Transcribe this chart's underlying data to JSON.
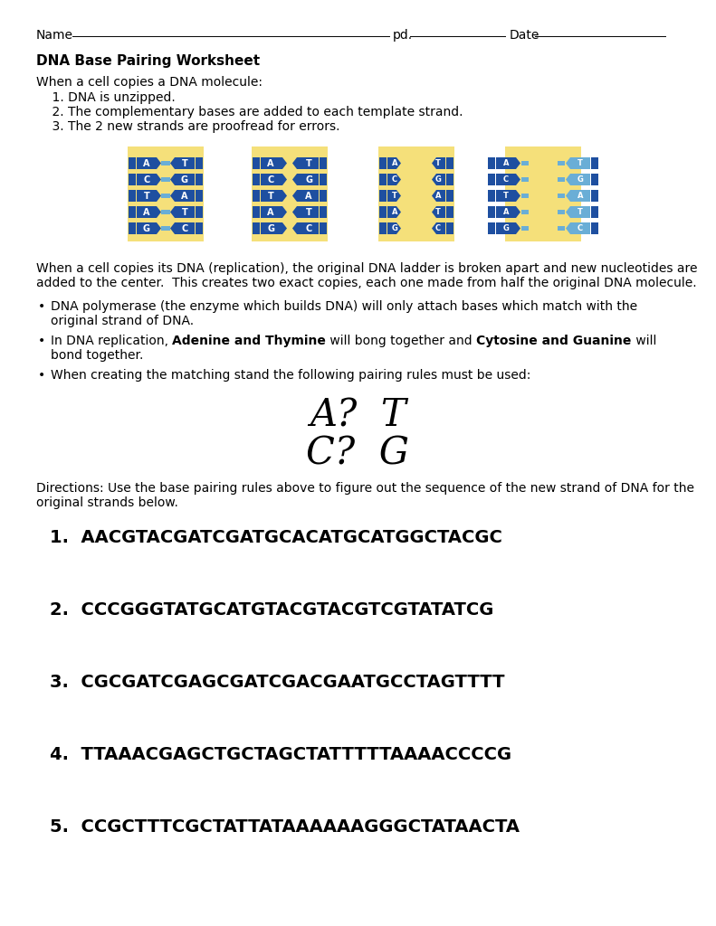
{
  "title": "DNA Base Pairing Worksheet",
  "bg_color": "#ffffff",
  "text_color": "#1a1a1a",
  "dna_bg_color": "#f5e07a",
  "dna_dark_blue": "#1e4fa0",
  "dna_light_blue": "#6aaed6",
  "dna_bases_l": [
    "A",
    "C",
    "T",
    "A",
    "G"
  ],
  "dna_bases_r": [
    "T",
    "G",
    "A",
    "T",
    "C"
  ],
  "pairing1": "A?  T",
  "pairing2": "C?  G",
  "sequences": [
    "1.  AACGTACGATCGATGCACATGCATGGCTACGC",
    "2.  CCCGGGTATGCATGTACGTACGTCGTATATCG",
    "3.  CGCGATCGAGCGATCGACGAATGCCTAGTTTT",
    "4.  TTAAACGAGCTGCTAGCTATTTTTAAAACCCCG",
    "5.  CCGCTTTCGCTATTATAAAAAAGGGCTATAACTA"
  ]
}
